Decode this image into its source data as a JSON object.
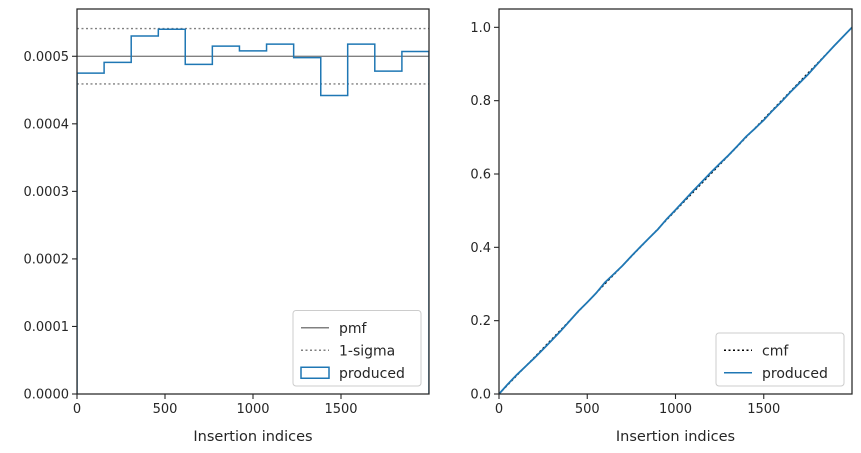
{
  "chart_data": [
    {
      "type": "step",
      "xlabel": "Insertion indices",
      "ylabel": "",
      "xlim": [
        0,
        2000
      ],
      "ylim": [
        0,
        0.00057
      ],
      "xticks": [
        0,
        500,
        1000,
        1500
      ],
      "xtick_labels": [
        "0",
        "500",
        "1000",
        "1500"
      ],
      "yticks": [
        0,
        0.0001,
        0.0002,
        0.0003,
        0.0004,
        0.0005
      ],
      "ytick_labels": [
        "0.0000",
        "0.0001",
        "0.0002",
        "0.0003",
        "0.0004",
        "0.0005"
      ],
      "grid": false,
      "legend_position": "lower-right",
      "series": [
        {
          "name": "pmf",
          "kind": "hline",
          "y": 0.0005,
          "color": "#808080",
          "style": "solid"
        },
        {
          "name": "1-sigma",
          "kind": "hlines",
          "y": [
            0.000459,
            0.000541
          ],
          "color": "#808080",
          "style": "dotted"
        },
        {
          "name": "produced",
          "kind": "step",
          "color": "#1f77b4",
          "bin_edges": [
            0,
            154,
            308,
            462,
            615,
            769,
            923,
            1077,
            1231,
            1385,
            1538,
            1692,
            1846,
            2000
          ],
          "values": [
            0.000475,
            0.000491,
            0.00053,
            0.00054,
            0.000488,
            0.000515,
            0.000508,
            0.000518,
            0.000498,
            0.000442,
            0.000518,
            0.000478,
            0.000507
          ]
        }
      ]
    },
    {
      "type": "line",
      "xlabel": "Insertion indices",
      "ylabel": "",
      "xlim": [
        0,
        2000
      ],
      "ylim": [
        0,
        1.05
      ],
      "xticks": [
        0,
        500,
        1000,
        1500
      ],
      "xtick_labels": [
        "0",
        "500",
        "1000",
        "1500"
      ],
      "yticks": [
        0,
        0.2,
        0.4,
        0.6,
        0.8,
        1.0
      ],
      "ytick_labels": [
        "0.0",
        "0.2",
        "0.4",
        "0.6",
        "0.8",
        "1.0"
      ],
      "grid": false,
      "legend_position": "lower-right",
      "series": [
        {
          "name": "cmf",
          "kind": "line",
          "color": "#000000",
          "style": "dotted",
          "x": [
            0,
            2000
          ],
          "y": [
            0,
            1
          ]
        },
        {
          "name": "produced",
          "kind": "line",
          "color": "#1f77b4",
          "x": [
            0,
            50,
            100,
            150,
            200,
            250,
            300,
            350,
            400,
            450,
            500,
            550,
            600,
            650,
            700,
            750,
            800,
            850,
            900,
            950,
            1000,
            1050,
            1100,
            1150,
            1200,
            1250,
            1300,
            1350,
            1400,
            1450,
            1500,
            1550,
            1600,
            1650,
            1700,
            1750,
            1800,
            1850,
            1900,
            1950,
            2000
          ],
          "y": [
            0,
            0.027,
            0.052,
            0.075,
            0.098,
            0.122,
            0.147,
            0.172,
            0.199,
            0.226,
            0.25,
            0.275,
            0.304,
            0.327,
            0.35,
            0.376,
            0.401,
            0.425,
            0.449,
            0.477,
            0.502,
            0.528,
            0.554,
            0.579,
            0.604,
            0.628,
            0.651,
            0.676,
            0.702,
            0.724,
            0.747,
            0.773,
            0.797,
            0.823,
            0.847,
            0.871,
            0.898,
            0.924,
            0.95,
            0.975,
            1.0
          ]
        }
      ]
    }
  ]
}
